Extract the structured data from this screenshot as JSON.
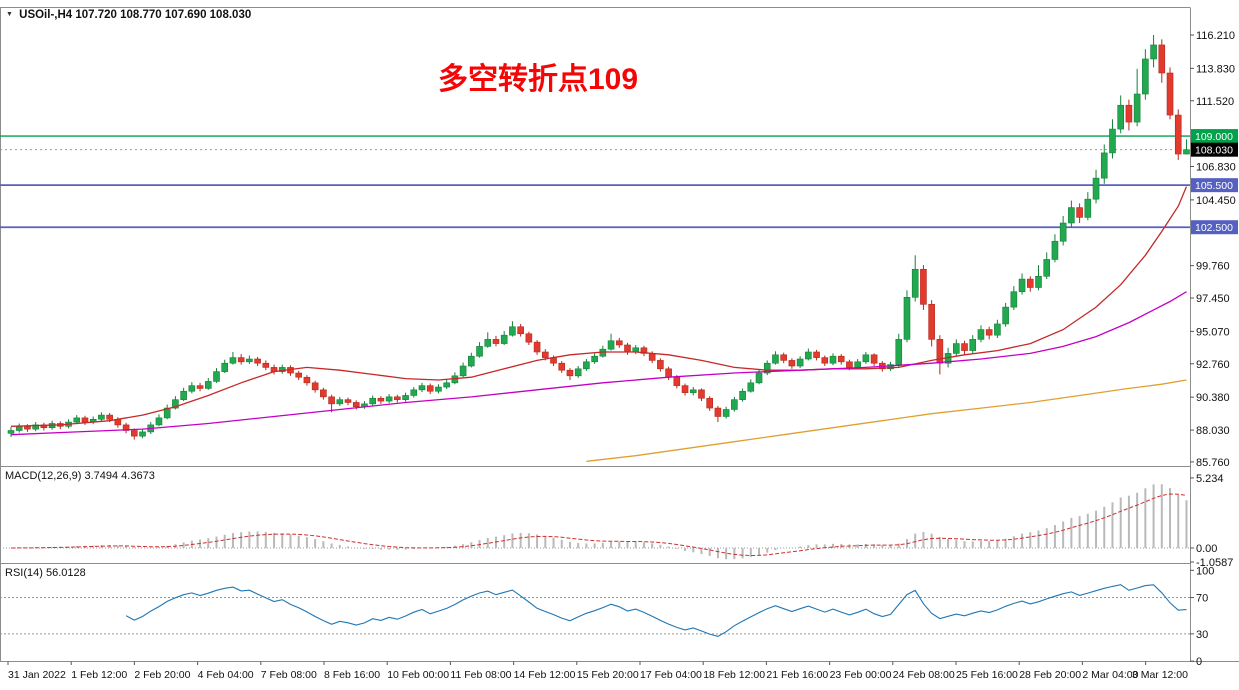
{
  "header": {
    "symbol_info": "USOil-,H4 107.720 108.770 107.690 108.030"
  },
  "annotation": {
    "text": "多空转折点109",
    "color": "#f40606"
  },
  "colors": {
    "up": "#22a84e",
    "up_border": "#13813a",
    "down": "#e23a2c",
    "down_border": "#b3291e",
    "ma_fast": "#c62828",
    "ma_mid": "#c400c4",
    "ma_slow": "#e0a030",
    "level_green": "#00a14b",
    "level_blue": "#5560c0",
    "rsi_line": "#1f77b4",
    "macd_signal": "#cf3030",
    "macd_hist": "#b9b9b9",
    "price_badge_bg": "#000000"
  },
  "chart_data": [
    {
      "type": "candlestick",
      "symbol": "USOil-",
      "timeframe": "H4",
      "last_ohlc": {
        "open": 107.72,
        "high": 108.77,
        "low": 107.69,
        "close": 108.03
      },
      "ylim": [
        85.76,
        118.14
      ],
      "price_axis_ticks": [
        116.21,
        113.83,
        111.52,
        106.83,
        104.45,
        99.76,
        97.45,
        95.07,
        92.76,
        90.38,
        88.03,
        85.76
      ],
      "levels": [
        {
          "price": 109.0,
          "label": "109.000",
          "style": "green"
        },
        {
          "price": 105.5,
          "label": "105.500",
          "style": "blue"
        },
        {
          "price": 102.5,
          "label": "102.500",
          "style": "blue"
        }
      ],
      "current_price": {
        "value": 108.03,
        "label": "108.030"
      },
      "x_labels": [
        "31 Jan 2022",
        "1 Feb 12:00",
        "2 Feb 20:00",
        "4 Feb 04:00",
        "7 Feb 08:00",
        "8 Feb 16:00",
        "10 Feb 00:00",
        "11 Feb 08:00",
        "14 Feb 12:00",
        "15 Feb 20:00",
        "17 Feb 04:00",
        "18 Feb 12:00",
        "21 Feb 16:00",
        "23 Feb 00:00",
        "24 Feb 08:00",
        "25 Feb 16:00",
        "28 Feb 20:00",
        "2 Mar 04:00",
        "3 Mar 12:00"
      ],
      "candles": [
        [
          87.8,
          88.25,
          87.55,
          88.0
        ],
        [
          88.0,
          88.5,
          87.85,
          88.3
        ],
        [
          88.3,
          88.45,
          87.9,
          88.1
        ],
        [
          88.1,
          88.6,
          87.95,
          88.4
        ],
        [
          88.4,
          88.55,
          88.0,
          88.2
        ],
        [
          88.2,
          88.7,
          88.05,
          88.5
        ],
        [
          88.5,
          88.65,
          88.1,
          88.3
        ],
        [
          88.3,
          88.8,
          88.15,
          88.6
        ],
        [
          88.6,
          89.1,
          88.45,
          88.9
        ],
        [
          88.9,
          89.05,
          88.4,
          88.6
        ],
        [
          88.6,
          89.0,
          88.45,
          88.8
        ],
        [
          88.8,
          89.3,
          88.65,
          89.1
        ],
        [
          89.1,
          89.25,
          88.6,
          88.8
        ],
        [
          88.8,
          88.95,
          88.2,
          88.4
        ],
        [
          88.4,
          88.55,
          87.8,
          88.0
        ],
        [
          88.0,
          88.15,
          87.35,
          87.6
        ],
        [
          87.6,
          88.1,
          87.45,
          87.9
        ],
        [
          87.9,
          88.6,
          87.75,
          88.4
        ],
        [
          88.4,
          89.15,
          88.3,
          88.9
        ],
        [
          88.9,
          89.85,
          88.8,
          89.6
        ],
        [
          89.6,
          90.45,
          89.5,
          90.2
        ],
        [
          90.2,
          91.05,
          90.1,
          90.8
        ],
        [
          90.8,
          91.45,
          90.65,
          91.2
        ],
        [
          91.2,
          91.4,
          90.8,
          91.0
        ],
        [
          91.0,
          91.75,
          90.9,
          91.5
        ],
        [
          91.5,
          92.45,
          91.4,
          92.2
        ],
        [
          92.2,
          93.05,
          92.1,
          92.8
        ],
        [
          92.8,
          93.6,
          92.7,
          93.2
        ],
        [
          93.2,
          93.45,
          92.7,
          92.9
        ],
        [
          92.9,
          93.35,
          92.75,
          93.1
        ],
        [
          93.1,
          93.25,
          92.6,
          92.8
        ],
        [
          92.8,
          93.0,
          92.3,
          92.5
        ],
        [
          92.5,
          92.7,
          92.0,
          92.2
        ],
        [
          92.2,
          92.7,
          92.05,
          92.5
        ],
        [
          92.5,
          92.65,
          91.9,
          92.1
        ],
        [
          92.1,
          92.25,
          91.6,
          91.8
        ],
        [
          91.8,
          91.95,
          91.2,
          91.4
        ],
        [
          91.4,
          91.55,
          90.7,
          90.9
        ],
        [
          90.9,
          91.05,
          90.2,
          90.4
        ],
        [
          90.4,
          90.55,
          89.3,
          89.9
        ],
        [
          89.9,
          90.4,
          89.75,
          90.2
        ],
        [
          90.2,
          90.35,
          89.8,
          90.0
        ],
        [
          90.0,
          90.15,
          89.5,
          89.7
        ],
        [
          89.7,
          90.1,
          89.55,
          89.9
        ],
        [
          89.9,
          90.5,
          89.75,
          90.3
        ],
        [
          90.3,
          90.45,
          89.9,
          90.1
        ],
        [
          90.1,
          90.6,
          89.95,
          90.4
        ],
        [
          90.4,
          90.55,
          90.0,
          90.2
        ],
        [
          90.2,
          90.7,
          90.05,
          90.5
        ],
        [
          90.5,
          91.1,
          90.35,
          90.9
        ],
        [
          90.9,
          91.4,
          90.75,
          91.2
        ],
        [
          91.2,
          91.35,
          90.6,
          90.8
        ],
        [
          90.8,
          91.3,
          90.65,
          91.1
        ],
        [
          91.1,
          91.6,
          90.95,
          91.4
        ],
        [
          91.4,
          92.15,
          91.3,
          91.9
        ],
        [
          91.9,
          92.85,
          91.8,
          92.6
        ],
        [
          92.6,
          93.55,
          92.5,
          93.3
        ],
        [
          93.3,
          94.3,
          93.2,
          94.0
        ],
        [
          94.0,
          95.0,
          93.9,
          94.5
        ],
        [
          94.5,
          94.75,
          94.0,
          94.2
        ],
        [
          94.2,
          95.1,
          94.1,
          94.8
        ],
        [
          94.8,
          95.8,
          94.7,
          95.4
        ],
        [
          95.4,
          95.6,
          94.7,
          94.9
        ],
        [
          94.9,
          95.05,
          94.1,
          94.3
        ],
        [
          94.3,
          94.45,
          93.4,
          93.6
        ],
        [
          93.6,
          93.8,
          93.0,
          93.2
        ],
        [
          93.2,
          93.35,
          92.6,
          92.8
        ],
        [
          92.8,
          92.95,
          92.1,
          92.3
        ],
        [
          92.3,
          92.45,
          91.6,
          91.9
        ],
        [
          91.9,
          92.6,
          91.75,
          92.4
        ],
        [
          92.4,
          93.1,
          92.25,
          92.9
        ],
        [
          92.9,
          93.5,
          92.75,
          93.3
        ],
        [
          93.3,
          94.05,
          93.2,
          93.8
        ],
        [
          93.8,
          94.9,
          93.7,
          94.4
        ],
        [
          94.4,
          94.6,
          93.9,
          94.1
        ],
        [
          94.1,
          94.25,
          93.4,
          93.6
        ],
        [
          93.6,
          94.1,
          93.45,
          93.9
        ],
        [
          93.9,
          94.05,
          93.3,
          93.5
        ],
        [
          93.5,
          93.65,
          92.8,
          93.0
        ],
        [
          93.0,
          93.15,
          92.2,
          92.4
        ],
        [
          92.4,
          92.55,
          91.6,
          91.8
        ],
        [
          91.8,
          91.95,
          91.0,
          91.2
        ],
        [
          91.2,
          91.35,
          90.5,
          90.7
        ],
        [
          90.7,
          91.1,
          90.5,
          90.9
        ],
        [
          90.9,
          91.0,
          90.1,
          90.3
        ],
        [
          90.3,
          90.45,
          89.4,
          89.6
        ],
        [
          89.6,
          89.75,
          88.6,
          89.0
        ],
        [
          89.0,
          89.7,
          88.85,
          89.5
        ],
        [
          89.5,
          90.4,
          89.35,
          90.2
        ],
        [
          90.2,
          91.0,
          90.05,
          90.8
        ],
        [
          90.8,
          91.65,
          90.7,
          91.4
        ],
        [
          91.4,
          92.35,
          91.3,
          92.1
        ],
        [
          92.1,
          93.0,
          91.95,
          92.8
        ],
        [
          92.8,
          93.65,
          92.7,
          93.4
        ],
        [
          93.4,
          93.55,
          92.8,
          93.0
        ],
        [
          93.0,
          93.15,
          92.4,
          92.6
        ],
        [
          92.6,
          93.3,
          92.45,
          93.1
        ],
        [
          93.1,
          93.85,
          93.0,
          93.6
        ],
        [
          93.6,
          93.75,
          93.0,
          93.2
        ],
        [
          93.2,
          93.35,
          92.6,
          92.8
        ],
        [
          92.8,
          93.5,
          92.65,
          93.3
        ],
        [
          93.3,
          93.45,
          92.7,
          92.9
        ],
        [
          92.9,
          93.05,
          92.3,
          92.5
        ],
        [
          92.5,
          93.1,
          92.35,
          92.9
        ],
        [
          92.9,
          93.6,
          92.75,
          93.4
        ],
        [
          93.4,
          93.5,
          92.6,
          92.8
        ],
        [
          92.8,
          92.95,
          92.2,
          92.4
        ],
        [
          92.4,
          92.9,
          92.25,
          92.7
        ],
        [
          92.7,
          94.9,
          92.5,
          94.5
        ],
        [
          94.5,
          98.0,
          94.3,
          97.5
        ],
        [
          97.5,
          100.5,
          97.2,
          99.5
        ],
        [
          99.5,
          99.8,
          96.6,
          97.0
        ],
        [
          97.0,
          97.3,
          94.0,
          94.5
        ],
        [
          94.5,
          94.8,
          92.0,
          92.8
        ],
        [
          92.8,
          93.9,
          92.5,
          93.5
        ],
        [
          93.5,
          94.5,
          93.3,
          94.2
        ],
        [
          94.2,
          94.4,
          93.4,
          93.7
        ],
        [
          93.7,
          94.8,
          93.5,
          94.5
        ],
        [
          94.5,
          95.5,
          94.3,
          95.2
        ],
        [
          95.2,
          95.4,
          94.5,
          94.8
        ],
        [
          94.8,
          95.9,
          94.6,
          95.6
        ],
        [
          95.6,
          97.1,
          95.4,
          96.8
        ],
        [
          96.8,
          98.3,
          96.6,
          97.9
        ],
        [
          97.9,
          99.2,
          97.7,
          98.8
        ],
        [
          98.8,
          99.0,
          97.9,
          98.2
        ],
        [
          98.2,
          99.8,
          98.0,
          99.0
        ],
        [
          99.0,
          100.7,
          98.8,
          100.2
        ],
        [
          100.2,
          102.0,
          100.0,
          101.5
        ],
        [
          101.5,
          103.3,
          101.2,
          102.8
        ],
        [
          102.8,
          104.4,
          102.5,
          103.9
        ],
        [
          103.9,
          104.2,
          102.8,
          103.2
        ],
        [
          103.2,
          105.0,
          103.0,
          104.5
        ],
        [
          104.5,
          106.6,
          104.2,
          106.0
        ],
        [
          106.0,
          108.4,
          105.6,
          107.8
        ],
        [
          107.8,
          110.2,
          107.4,
          109.5
        ],
        [
          109.5,
          111.9,
          109.2,
          111.2
        ],
        [
          111.2,
          111.6,
          109.4,
          110.0
        ],
        [
          110.0,
          113.8,
          109.7,
          112.0
        ],
        [
          112.0,
          115.2,
          111.6,
          114.5
        ],
        [
          114.5,
          116.21,
          113.9,
          115.5
        ],
        [
          115.5,
          115.9,
          112.8,
          113.5
        ],
        [
          113.5,
          113.9,
          110.2,
          110.5
        ],
        [
          110.5,
          110.9,
          107.3,
          107.72
        ],
        [
          107.72,
          108.77,
          107.69,
          108.03
        ]
      ],
      "ma_fast_points": [
        [
          0,
          88.3
        ],
        [
          6,
          88.4
        ],
        [
          12,
          88.7
        ],
        [
          16,
          89.1
        ],
        [
          20,
          89.7
        ],
        [
          24,
          90.5
        ],
        [
          28,
          91.4
        ],
        [
          32,
          92.2
        ],
        [
          36,
          92.5
        ],
        [
          40,
          92.3
        ],
        [
          44,
          92.0
        ],
        [
          48,
          91.7
        ],
        [
          52,
          91.6
        ],
        [
          56,
          91.8
        ],
        [
          60,
          92.4
        ],
        [
          64,
          93.0
        ],
        [
          68,
          93.4
        ],
        [
          72,
          93.6
        ],
        [
          76,
          93.6
        ],
        [
          80,
          93.4
        ],
        [
          84,
          93.0
        ],
        [
          88,
          92.5
        ],
        [
          92,
          92.3
        ],
        [
          96,
          92.3
        ],
        [
          100,
          92.4
        ],
        [
          104,
          92.4
        ],
        [
          108,
          92.5
        ],
        [
          112,
          93.0
        ],
        [
          116,
          93.4
        ],
        [
          120,
          93.7
        ],
        [
          124,
          94.2
        ],
        [
          128,
          95.2
        ],
        [
          132,
          96.8
        ],
        [
          135,
          98.4
        ],
        [
          138,
          100.5
        ],
        [
          140,
          102.2
        ],
        [
          142,
          104.0
        ],
        [
          143,
          105.4
        ]
      ],
      "ma_mid_points": [
        [
          0,
          87.7
        ],
        [
          8,
          87.9
        ],
        [
          16,
          88.1
        ],
        [
          24,
          88.5
        ],
        [
          32,
          89.0
        ],
        [
          40,
          89.5
        ],
        [
          48,
          90.0
        ],
        [
          56,
          90.4
        ],
        [
          64,
          90.9
        ],
        [
          72,
          91.4
        ],
        [
          80,
          91.8
        ],
        [
          88,
          92.1
        ],
        [
          96,
          92.3
        ],
        [
          104,
          92.5
        ],
        [
          112,
          92.8
        ],
        [
          118,
          93.1
        ],
        [
          124,
          93.5
        ],
        [
          128,
          94.0
        ],
        [
          132,
          94.7
        ],
        [
          136,
          95.7
        ],
        [
          139,
          96.6
        ],
        [
          141,
          97.2
        ],
        [
          143,
          97.9
        ]
      ],
      "ma_slow_points": [
        [
          70,
          85.8
        ],
        [
          76,
          86.2
        ],
        [
          82,
          86.7
        ],
        [
          88,
          87.2
        ],
        [
          94,
          87.7
        ],
        [
          100,
          88.2
        ],
        [
          106,
          88.7
        ],
        [
          112,
          89.2
        ],
        [
          118,
          89.6
        ],
        [
          124,
          90.0
        ],
        [
          130,
          90.5
        ],
        [
          136,
          91.0
        ],
        [
          140,
          91.3
        ],
        [
          143,
          91.6
        ]
      ]
    },
    {
      "type": "macd",
      "display_label": "MACD(12,26,9) 3.7494 4.3673",
      "params": [
        12,
        26,
        9
      ],
      "main_value": 3.7494,
      "signal_value": 4.3673,
      "axis_ticks": [
        {
          "v": 5.234,
          "t": "5.234"
        },
        {
          "v": 0,
          "t": "0.00"
        },
        {
          "v": -1.0587,
          "t": "-1.0587"
        }
      ]
    },
    {
      "type": "rsi",
      "display_label": "RSI(14) 56.0128",
      "period": 14,
      "value": 56.0128,
      "axis_ticks": [
        {
          "v": 100,
          "t": "100"
        },
        {
          "v": 70,
          "t": "70"
        },
        {
          "v": 30,
          "t": "30"
        },
        {
          "v": 0,
          "t": "0"
        }
      ],
      "levels": [
        70,
        30
      ]
    }
  ]
}
